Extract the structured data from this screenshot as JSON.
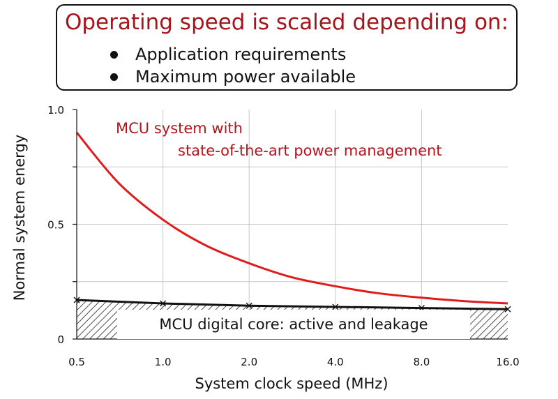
{
  "callout": {
    "title": "Operating speed is scaled depending on:",
    "bullets": [
      "Application requirements",
      "Maximum power available"
    ]
  },
  "chart_data": {
    "type": "line",
    "xlabel": "System clock speed (MHz)",
    "ylabel": "Normal system energy",
    "x_scale": "log2",
    "xticks": [
      "0.5",
      "1.0",
      "2.0",
      "4.0",
      "8.0",
      "16.0"
    ],
    "yticks": [
      "0",
      "0.5",
      "1.0"
    ],
    "ylim": [
      0,
      1.0
    ],
    "grid": true,
    "colors": {
      "red": "#e01b1b",
      "black": "#111111"
    },
    "annotations": [
      {
        "text": "MCU system with"
      },
      {
        "text": "state-of-the-art power management"
      },
      {
        "text": "MCU digital core: active and leakage"
      }
    ],
    "series": [
      {
        "color": "red",
        "x": [
          0.5,
          0.7,
          1.0,
          1.4,
          2.0,
          2.8,
          4.0,
          5.6,
          8.0,
          11.3,
          16.0
        ],
        "y": [
          0.9,
          0.68,
          0.52,
          0.41,
          0.33,
          0.27,
          0.23,
          0.2,
          0.18,
          0.165,
          0.155
        ]
      },
      {
        "color": "black",
        "markers": "x",
        "hatched_fill": true,
        "x": [
          0.5,
          1.0,
          2.0,
          4.0,
          8.0,
          16.0
        ],
        "y": [
          0.17,
          0.155,
          0.145,
          0.14,
          0.135,
          0.13
        ]
      }
    ]
  }
}
